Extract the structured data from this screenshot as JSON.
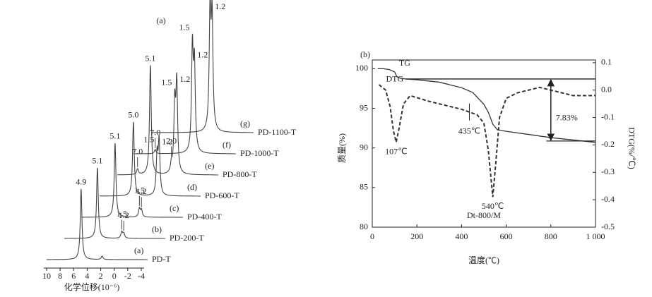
{
  "chart_data": [
    {
      "type": "waterfall",
      "tag": "(a)",
      "xlabel": "化学位移(10⁻⁶)",
      "xlim": [
        10,
        -4
      ],
      "xticks": [
        10,
        8,
        6,
        4,
        2,
        0,
        -2,
        -4
      ],
      "spectra": [
        {
          "name": "PD-T",
          "tag": "(a)",
          "peaks": [
            {
              "x": 4.9,
              "height": 100,
              "label": "4.9"
            },
            {
              "x": 1.8,
              "height": 5
            }
          ]
        },
        {
          "name": "PD-200-T",
          "tag": "(b)",
          "peaks": [
            {
              "x": 5.1,
              "height": 100,
              "label": "5.1"
            },
            {
              "x": 1.5,
              "height": 9,
              "label": "1.5"
            },
            {
              "x": 1.2,
              "height": 7,
              "label": "1.2"
            }
          ]
        },
        {
          "name": "PD-400-T",
          "tag": "(c)",
          "peaks": [
            {
              "x": 5.1,
              "height": 105,
              "label": "5.1"
            },
            {
              "x": 1.5,
              "height": 12,
              "label": "1.5"
            },
            {
              "x": 1.2,
              "height": 10,
              "label": "1.2"
            }
          ]
        },
        {
          "name": "PD-600-T",
          "tag": "(d)",
          "peaks": [
            {
              "x": 5.0,
              "height": 105,
              "label": "5.0"
            },
            {
              "x": 1.5,
              "height": 55,
              "label": "1.5"
            },
            {
              "x": 1.2,
              "height": 75,
              "label": "1.2"
            }
          ]
        },
        {
          "name": "PD-800-T",
          "tag": "(e)",
          "peaks": [
            {
              "x": 7.0,
              "height": 8,
              "label": "7.0"
            },
            {
              "x": 5.1,
              "height": 155,
              "label": "5.1"
            },
            {
              "x": 2.0,
              "height": 12,
              "label": "2.0"
            },
            {
              "x": 1.5,
              "height": 95,
              "label": "1.5"
            },
            {
              "x": 1.2,
              "height": 125,
              "label": "1.2"
            }
          ]
        },
        {
          "name": "PD-1000-T",
          "tag": "(f)",
          "peaks": [
            {
              "x": 7.0,
              "height": 6,
              "label": "7.0"
            },
            {
              "x": 1.5,
              "height": 145,
              "label": "1.5"
            },
            {
              "x": 1.2,
              "height": 120,
              "label": "1.2"
            }
          ]
        },
        {
          "name": "PD-1100-T",
          "tag": "(g)",
          "peaks": [
            {
              "x": 1.5,
              "height": 165,
              "label": "1.5"
            },
            {
              "x": 1.2,
              "height": 155,
              "label": "1.2"
            }
          ]
        }
      ]
    },
    {
      "type": "line",
      "tag": "(b)",
      "xlabel": "温度(℃)",
      "ylabel": "质量(%)",
      "y2label": "DTG(%/℃)",
      "xlim": [
        0,
        1000
      ],
      "xticks": [
        0,
        200,
        400,
        600,
        800,
        {
          "value": 1000,
          "label": "1 000"
        }
      ],
      "ylim": [
        80,
        101.1
      ],
      "yticks": [
        80,
        85,
        90,
        95,
        100
      ],
      "y2lim": [
        -0.5,
        0.11
      ],
      "y2ticks": [
        -0.5,
        -0.4,
        -0.3,
        -0.2,
        -0.1,
        {
          "value": 0,
          "label": "0.0"
        },
        0.1
      ],
      "series": [
        {
          "name": "TG",
          "color": "#333333",
          "x": [
            25,
            50,
            75,
            100,
            110,
            125,
            150,
            200,
            300,
            400,
            450,
            500,
            520,
            540,
            560,
            600,
            700,
            800,
            900,
            1000
          ],
          "values": [
            100,
            100,
            99.9,
            99.6,
            99.0,
            98.8,
            98.7,
            98.6,
            98.3,
            97.6,
            97.0,
            95.5,
            94.5,
            93.0,
            92.3,
            92.1,
            91.7,
            91.3,
            91.0,
            90.7
          ]
        },
        {
          "name": "DTG",
          "color": "#333333",
          "axis": "y2",
          "dashed": true,
          "x": [
            30,
            60,
            80,
            95,
            107,
            120,
            140,
            170,
            250,
            350,
            400,
            435,
            470,
            500,
            520,
            540,
            555,
            570,
            600,
            650,
            700,
            750,
            800,
            850,
            900,
            950,
            1000
          ],
          "values": [
            0.02,
            0.0,
            -0.06,
            -0.15,
            -0.19,
            -0.14,
            -0.05,
            -0.02,
            -0.04,
            -0.06,
            -0.07,
            -0.08,
            -0.09,
            -0.12,
            -0.22,
            -0.39,
            -0.25,
            -0.1,
            -0.03,
            -0.01,
            0.0,
            0.01,
            0.0,
            -0.01,
            -0.02,
            -0.02,
            -0.02
          ]
        }
      ],
      "annotations": [
        {
          "x": 107,
          "label": "107℃"
        },
        {
          "x": 435,
          "label": "435℃"
        },
        {
          "x": 540,
          "label": "540℃"
        }
      ],
      "reference_lines": [
        98.7,
        90.87
      ],
      "difference_label": "7.83%",
      "sample": "Dt-800/M"
    }
  ]
}
